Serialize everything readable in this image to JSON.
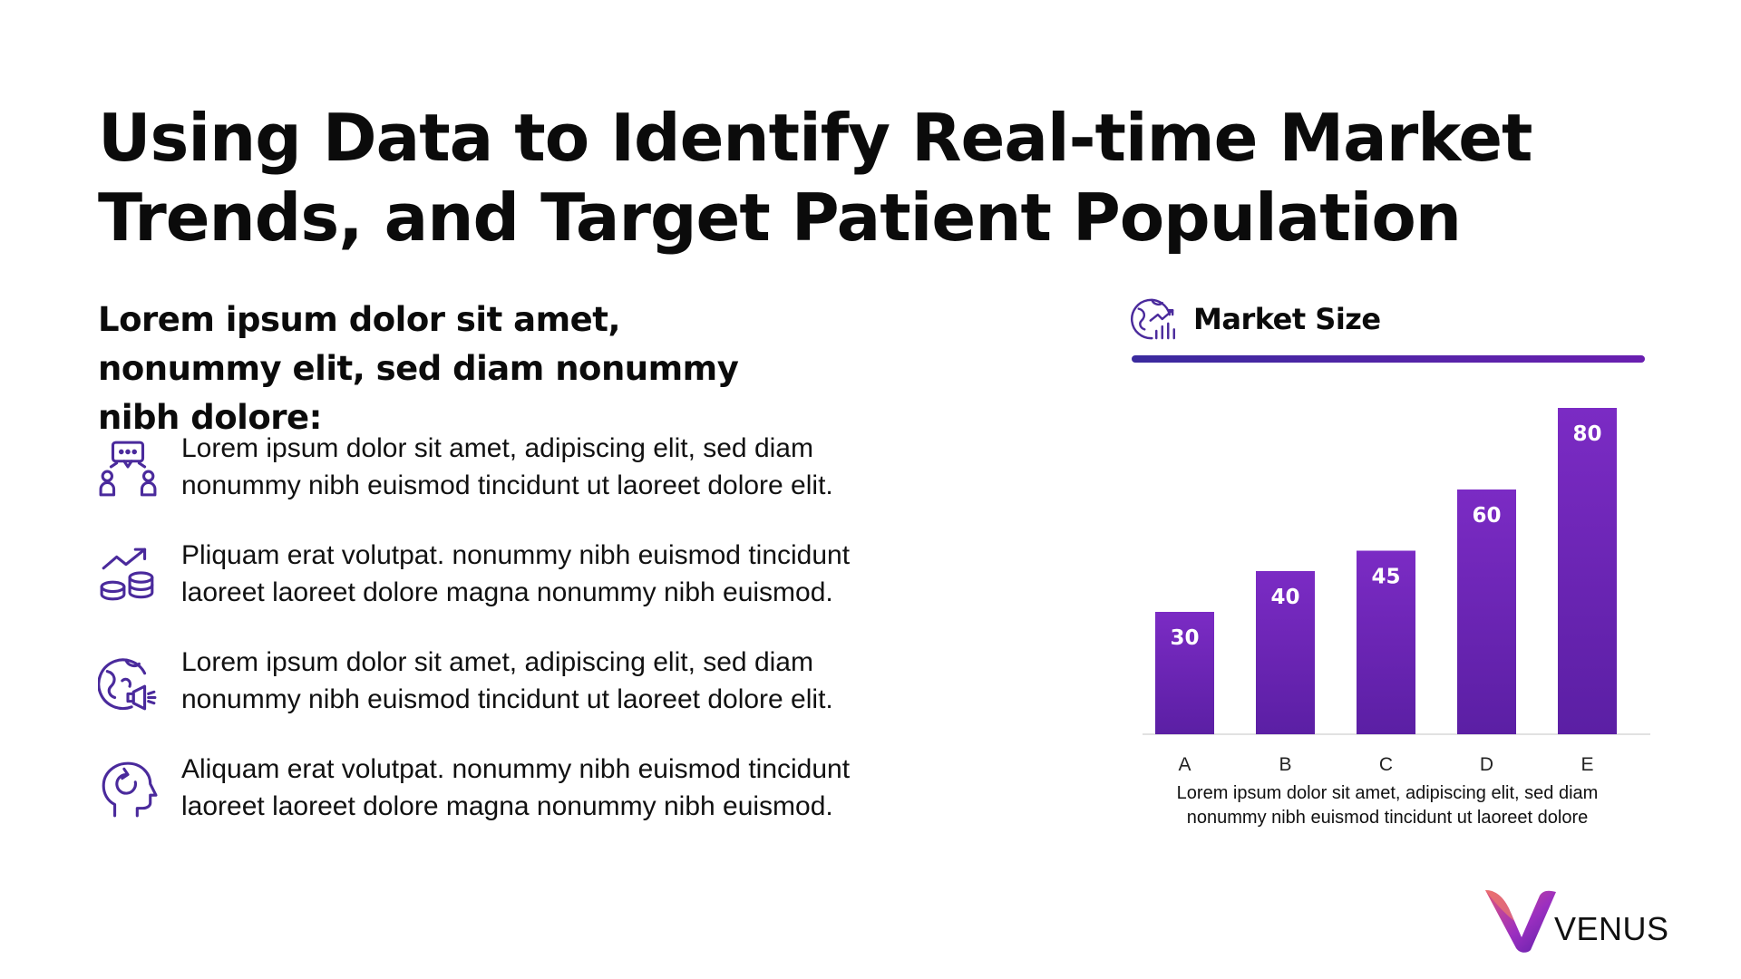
{
  "title": "Using Data to Identify Real-time Market Trends, and Target Patient Population",
  "subtitle": "Lorem ipsum dolor sit amet, nonummy elit, sed diam nonummy nibh dolore:",
  "bullets": [
    {
      "icon": "people-discussion-icon",
      "text": "Lorem ipsum dolor sit amet, adipiscing elit, sed diam nonummy nibh euismod tincidunt ut laoreet dolore elit."
    },
    {
      "icon": "coins-growth-icon",
      "text": "Pliquam erat volutpat. nonummy nibh euismod tincidunt laoreet laoreet dolore magna nonummy nibh euismod."
    },
    {
      "icon": "globe-megaphone-icon",
      "text": "Lorem ipsum dolor sit amet, adipiscing elit, sed diam nonummy nibh euismod tincidunt ut laoreet dolore elit."
    },
    {
      "icon": "head-refresh-icon",
      "text": "Aliquam erat volutpat. nonummy nibh euismod tincidunt laoreet laoreet dolore magna nonummy nibh euismod."
    }
  ],
  "chart_header": {
    "icon": "globe-chart-icon",
    "title": "Market Size"
  },
  "chart_caption": "Lorem ipsum dolor sit amet, adipiscing elit, sed diam nonummy nibh euismod tincidunt ut laoreet dolore",
  "chart_data": {
    "type": "bar",
    "title": "Market Size",
    "categories": [
      "A",
      "B",
      "C",
      "D",
      "E"
    ],
    "values": [
      30,
      40,
      45,
      60,
      80
    ],
    "xlabel": "",
    "ylabel": "",
    "ylim": [
      0,
      80
    ],
    "grid": false,
    "legend": "none",
    "data_labels": true
  },
  "colors": {
    "bar_top": "#7b2bc4",
    "bar_bottom": "#5b1fa4",
    "icon": "#4a2a9c",
    "accent": "#6a1fb0"
  },
  "logo": {
    "text": "VENUS",
    "icon": "venus-v-logo-icon"
  }
}
